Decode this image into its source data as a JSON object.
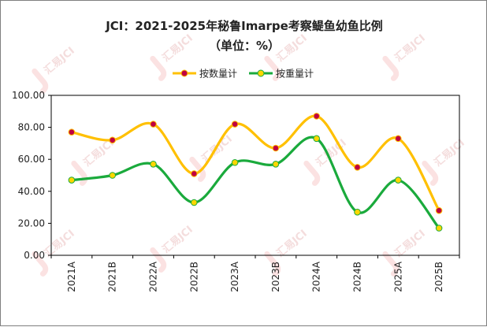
{
  "chart_data": {
    "type": "line",
    "title": "JCI：2021-2025年秘鲁Imarpe考察鳀鱼幼鱼比例",
    "subtitle": "（单位：%）",
    "categories": [
      "2021A",
      "2021B",
      "2022A",
      "2022B",
      "2023A",
      "2023B",
      "2024A",
      "2024B",
      "2025A",
      "2025B"
    ],
    "series": [
      {
        "name": "按数量计",
        "values": [
          77,
          72,
          82,
          51,
          82,
          67,
          87,
          55,
          73,
          28
        ],
        "line_color": "#ffc000",
        "marker_color": "#c00040"
      },
      {
        "name": "按重量计",
        "values": [
          47,
          50,
          57,
          33,
          58,
          57,
          73,
          27,
          47,
          17
        ],
        "line_color": "#1aaa3c",
        "marker_color": "#ffd600"
      }
    ],
    "ylim": [
      0,
      100
    ],
    "yticks": [
      "0.00",
      "20.00",
      "40.00",
      "60.00",
      "80.00",
      "100.00"
    ],
    "ytick_values": [
      0,
      20,
      40,
      60,
      80,
      100
    ],
    "legend_position": "top-center",
    "grid": false,
    "watermark_text": "汇易JCI"
  }
}
